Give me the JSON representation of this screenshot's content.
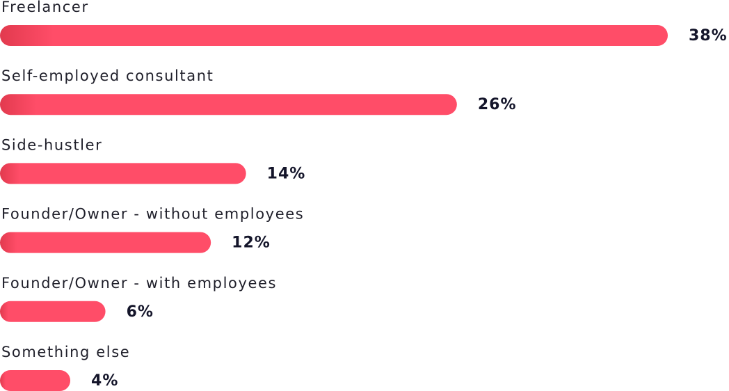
{
  "chart_data": {
    "type": "bar",
    "orientation": "horizontal",
    "categories": [
      "Freelancer",
      "Self-employed consultant",
      "Side-hustler",
      "Founder/Owner - without employees",
      "Founder/Owner - with employees",
      "Something else"
    ],
    "values": [
      38,
      26,
      14,
      12,
      6,
      4
    ],
    "value_labels": [
      "38%",
      "26%",
      "14%",
      "12%",
      "6%",
      "4%"
    ],
    "color": "#ff4d68"
  }
}
